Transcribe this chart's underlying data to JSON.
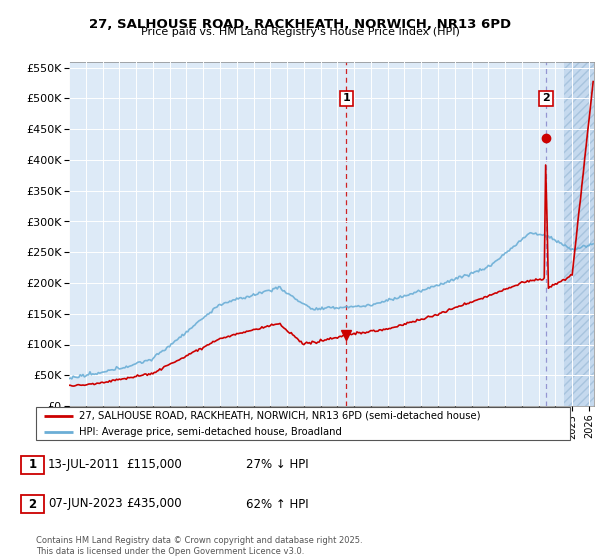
{
  "title": "27, SALHOUSE ROAD, RACKHEATH, NORWICH, NR13 6PD",
  "subtitle": "Price paid vs. HM Land Registry's House Price Index (HPI)",
  "hpi_color": "#6baed6",
  "price_color": "#cc0000",
  "plot_bg": "#ddeaf7",
  "ylim": [
    0,
    560000
  ],
  "yticks": [
    0,
    50000,
    100000,
    150000,
    200000,
    250000,
    300000,
    350000,
    400000,
    450000,
    500000,
    550000
  ],
  "xlim_start": 1995.0,
  "xlim_end": 2026.3,
  "sale1_x": 2011.53,
  "sale1_y": 115000,
  "sale2_x": 2023.44,
  "sale2_y": 435000,
  "legend_line1": "27, SALHOUSE ROAD, RACKHEATH, NORWICH, NR13 6PD (semi-detached house)",
  "legend_line2": "HPI: Average price, semi-detached house, Broadland",
  "table_entries": [
    {
      "num": "1",
      "date": "13-JUL-2011",
      "price": "£115,000",
      "pct": "27% ↓ HPI"
    },
    {
      "num": "2",
      "date": "07-JUN-2023",
      "price": "£435,000",
      "pct": "62% ↑ HPI"
    }
  ],
  "footer": "Contains HM Land Registry data © Crown copyright and database right 2025.\nThis data is licensed under the Open Government Licence v3.0."
}
